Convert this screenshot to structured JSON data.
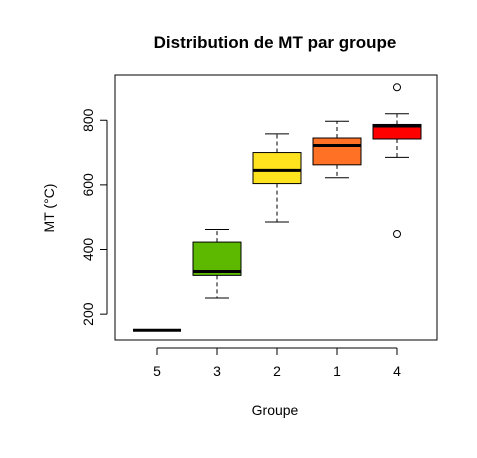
{
  "chart_data": {
    "type": "boxplot",
    "title": "Distribution de MT par groupe",
    "xlabel": "Groupe",
    "ylabel": "MT (°C)",
    "ylim": [
      120,
      940
    ],
    "yticks": [
      200,
      400,
      600,
      800
    ],
    "categories": [
      "5",
      "3",
      "2",
      "1",
      "4"
    ],
    "boxes": [
      {
        "group": "5",
        "min": 150,
        "q1": 150,
        "median": 150,
        "q3": 150,
        "max": 150,
        "outliers": [],
        "color": "#FFFFFF"
      },
      {
        "group": "3",
        "min": 250,
        "q1": 320,
        "median": 332,
        "q3": 423,
        "max": 462,
        "outliers": [],
        "color": "#5DB800"
      },
      {
        "group": "2",
        "min": 485,
        "q1": 604,
        "median": 645,
        "q3": 700,
        "max": 758,
        "outliers": [],
        "color": "#FFE31F"
      },
      {
        "group": "1",
        "min": 622,
        "q1": 662,
        "median": 722,
        "q3": 745,
        "max": 797,
        "outliers": [],
        "color": "#FF7124"
      },
      {
        "group": "4",
        "min": 685,
        "q1": 742,
        "median": 782,
        "q3": 787,
        "max": 820,
        "outliers": [
          902,
          448
        ],
        "color": "#FF0000"
      }
    ],
    "grid": false,
    "legend": "none"
  }
}
